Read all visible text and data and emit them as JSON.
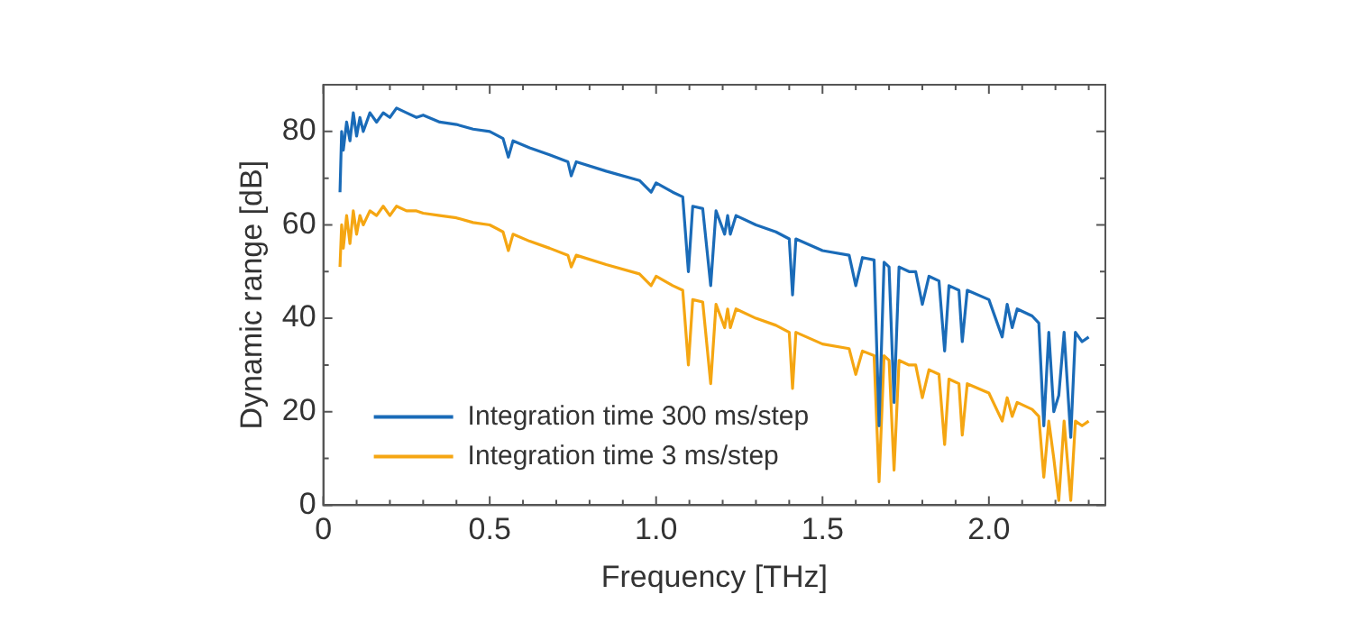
{
  "chart_data": {
    "type": "line",
    "xlabel": "Frequency [THz]",
    "ylabel": "Dynamic range [dB]",
    "x": [
      0.05,
      0.055,
      0.06,
      0.07,
      0.08,
      0.09,
      0.1,
      0.11,
      0.12,
      0.14,
      0.16,
      0.18,
      0.2,
      0.22,
      0.25,
      0.28,
      0.3,
      0.35,
      0.4,
      0.45,
      0.5,
      0.54,
      0.556,
      0.57,
      0.62,
      0.68,
      0.735,
      0.745,
      0.76,
      0.85,
      0.95,
      0.985,
      1.0,
      1.05,
      1.08,
      1.097,
      1.11,
      1.14,
      1.164,
      1.18,
      1.206,
      1.215,
      1.223,
      1.24,
      1.3,
      1.36,
      1.4,
      1.41,
      1.42,
      1.5,
      1.58,
      1.6,
      1.62,
      1.655,
      1.67,
      1.685,
      1.7,
      1.715,
      1.73,
      1.76,
      1.78,
      1.8,
      1.82,
      1.85,
      1.867,
      1.88,
      1.91,
      1.92,
      1.935,
      2.0,
      2.04,
      2.055,
      2.07,
      2.085,
      2.13,
      2.15,
      2.165,
      2.18,
      2.195,
      2.21,
      2.226,
      2.246,
      2.26,
      2.28,
      2.3
    ],
    "series": [
      {
        "name": "Integration time 300 ms/step",
        "color": "#1a6bb8",
        "values": [
          67,
          80,
          76,
          82,
          78,
          84,
          79,
          83,
          80,
          84,
          82,
          84,
          83,
          85,
          84,
          83,
          83.5,
          82,
          81.5,
          80.5,
          80,
          78.5,
          74.5,
          78,
          76.5,
          75,
          73.5,
          70.5,
          73.5,
          71.5,
          69.5,
          67,
          69,
          67,
          66,
          50,
          64,
          63.5,
          47,
          63,
          58,
          62,
          58,
          62,
          60,
          58.5,
          57,
          45,
          57,
          54.5,
          53.5,
          47,
          53,
          52.5,
          17,
          52,
          51,
          22,
          51,
          50,
          50,
          43,
          49,
          48,
          33,
          47,
          46,
          35,
          46,
          44,
          36,
          43,
          38,
          42,
          40.5,
          39,
          17,
          37,
          20,
          23.5,
          37,
          14.5,
          37,
          35,
          36
        ]
      },
      {
        "name": "Integration time 3 ms/step",
        "color": "#f5a612",
        "values": [
          51,
          60,
          55,
          62,
          56,
          63,
          58,
          62,
          60,
          63,
          62,
          64,
          62,
          64,
          63,
          63,
          62.5,
          62,
          61.5,
          60.5,
          60,
          58.5,
          54.5,
          58,
          56.5,
          55,
          53.5,
          51,
          53.5,
          51.5,
          49.5,
          47,
          49,
          47,
          46,
          30,
          44,
          43.5,
          26,
          43,
          38,
          42,
          38,
          42,
          40,
          38.5,
          37,
          25,
          37,
          34.5,
          33.5,
          28,
          33,
          32,
          5,
          32,
          31,
          7.5,
          31,
          30,
          30,
          23,
          29,
          28,
          13,
          27,
          26,
          15,
          26,
          24,
          18,
          23,
          19,
          22,
          20.5,
          19,
          6,
          18,
          10,
          1,
          18,
          1,
          18,
          17,
          18
        ]
      }
    ],
    "xlim": [
      0,
      2.35
    ],
    "xticks": [
      0,
      {
        "value": 0.1,
        "label": null
      },
      {
        "value": 0.2,
        "label": null
      },
      {
        "value": 0.3,
        "label": null
      },
      {
        "value": 0.4,
        "label": null
      },
      0.5,
      {
        "value": 0.6,
        "label": null
      },
      {
        "value": 0.7,
        "label": null
      },
      {
        "value": 0.8,
        "label": null
      },
      {
        "value": 0.9,
        "label": null
      },
      {
        "value": 1,
        "label": "1.0"
      },
      {
        "value": 1.1,
        "label": null
      },
      {
        "value": 1.2,
        "label": null
      },
      {
        "value": 1.3,
        "label": null
      },
      {
        "value": 1.4,
        "label": null
      },
      1.5,
      {
        "value": 1.6,
        "label": null
      },
      {
        "value": 1.7,
        "label": null
      },
      {
        "value": 1.8,
        "label": null
      },
      {
        "value": 1.9,
        "label": null
      },
      {
        "value": 2,
        "label": "2.0"
      },
      {
        "value": 2.1,
        "label": null
      },
      {
        "value": 2.2,
        "label": null
      },
      {
        "value": 2.3,
        "label": null
      }
    ],
    "ylim": [
      0,
      90
    ],
    "yticks": [
      0,
      {
        "value": 10,
        "label": null
      },
      20,
      {
        "value": 30,
        "label": null
      },
      40,
      {
        "value": 50,
        "label": null
      },
      60,
      {
        "value": 70,
        "label": null
      },
      80,
      {
        "value": 90,
        "label": null
      }
    ],
    "legend": "bottom left",
    "grid": false,
    "marker": "none",
    "line_style": "solid"
  }
}
